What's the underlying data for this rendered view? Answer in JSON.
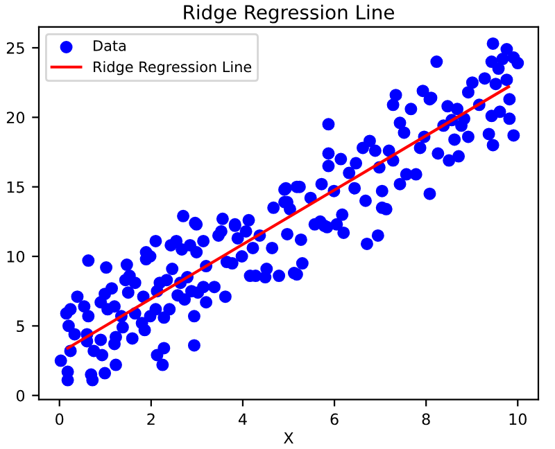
{
  "chart_data": {
    "type": "scatter",
    "title": "Ridge Regression Line",
    "xlabel": "X",
    "xlim": [
      -0.45,
      10.45
    ],
    "ylim": [
      -0.3,
      26.5
    ],
    "xticks": [
      0,
      2,
      4,
      6,
      8,
      10
    ],
    "yticks": [
      0,
      5,
      10,
      15,
      20,
      25
    ],
    "grid": false,
    "legend": "top left",
    "series": [
      {
        "name": "Data",
        "color": "#0000ff",
        "marker": "circle",
        "x": [
          0.18,
          0.18,
          0.03,
          0.24,
          0.2,
          0.15,
          0.24,
          0.39,
          0.33,
          0.63,
          0.54,
          0.63,
          0.6,
          0.6,
          0.69,
          0.72,
          0.75,
          0.9,
          0.93,
          0.99,
          0.9,
          0.99,
          1.02,
          1.05,
          1.14,
          1.2,
          1.23,
          1.2,
          1.23,
          1.35,
          1.38,
          1.44,
          1.47,
          1.5,
          1.53,
          1.59,
          1.65,
          1.65,
          1.8,
          1.83,
          1.86,
          1.89,
          1.89,
          1.98,
          1.98,
          2.1,
          2.1,
          2.13,
          2.13,
          2.19,
          2.25,
          2.28,
          2.28,
          2.34,
          2.4,
          2.43,
          2.46,
          2.55,
          2.58,
          2.64,
          2.67,
          2.73,
          2.79,
          2.85,
          2.88,
          2.94,
          2.94,
          2.99,
          2.99,
          3.02,
          3.14,
          3.14,
          3.2,
          3.2,
          3.38,
          3.47,
          3.53,
          3.62,
          3.65,
          3.77,
          3.83,
          3.89,
          3.98,
          4.07,
          4.16,
          4.22,
          4.28,
          4.37,
          4.49,
          4.52,
          4.64,
          4.79,
          4.97,
          5.12,
          2.7,
          2.96,
          3.56,
          3.83,
          4.13,
          4.67,
          4.91,
          4.91,
          5.03,
          5.18,
          4.94,
          5.24,
          4.97,
          5.48,
          5.72,
          5.69,
          5.84,
          5.87,
          5.87,
          5.87,
          5.99,
          6.14,
          6.17,
          6.32,
          6.44,
          6.47,
          6.62,
          6.68,
          6.77,
          6.89,
          6.98,
          7.04,
          7.13,
          7.04,
          7.19,
          7.28,
          7.34,
          7.28,
          7.43,
          7.43,
          7.52,
          7.57,
          7.67,
          7.78,
          7.87,
          7.93,
          7.96,
          8.08,
          8.08,
          8.11,
          8.26,
          8.23,
          8.38,
          8.47,
          8.5,
          8.56,
          8.68,
          8.71,
          8.77,
          8.62,
          8.83,
          8.92,
          8.92,
          9.01,
          9.16,
          9.28,
          9.37,
          9.43,
          9.46,
          9.43,
          9.46,
          9.52,
          9.58,
          9.61,
          9.67,
          9.76,
          9.76,
          9.82,
          9.82,
          9.91,
          9.91,
          10.0,
          5.27,
          5.3,
          5.18,
          5.57,
          5.78,
          6.05,
          6.2,
          6.71,
          6.95
        ],
        "values": [
          1.1,
          1.7,
          2.5,
          3.2,
          5.0,
          5.9,
          6.2,
          7.1,
          4.4,
          9.7,
          6.4,
          5.7,
          4.4,
          3.9,
          1.5,
          1.1,
          3.2,
          4.0,
          2.9,
          1.6,
          6.7,
          7.3,
          9.2,
          6.2,
          7.7,
          6.4,
          4.2,
          3.7,
          2.2,
          5.7,
          4.9,
          8.3,
          9.4,
          7.4,
          8.6,
          4.1,
          8.1,
          5.9,
          5.2,
          7.1,
          4.7,
          9.8,
          10.3,
          10.0,
          5.7,
          6.2,
          11.1,
          2.9,
          7.5,
          8.1,
          2.2,
          3.4,
          5.6,
          8.3,
          6.2,
          10.8,
          9.1,
          11.1,
          7.2,
          8.1,
          10.5,
          6.9,
          8.5,
          10.8,
          7.5,
          5.7,
          3.6,
          12.3,
          10.3,
          7.4,
          7.8,
          11.1,
          6.7,
          9.3,
          7.8,
          11.5,
          11.8,
          7.1,
          9.6,
          9.5,
          12.3,
          11.3,
          10.0,
          11.8,
          8.6,
          10.6,
          8.6,
          11.5,
          8.5,
          9.1,
          10.6,
          8.6,
          11.6,
          8.8,
          12.9,
          12.4,
          12.7,
          12.2,
          12.6,
          13.5,
          14.8,
          13.9,
          13.4,
          15.0,
          14.9,
          15.0,
          13.9,
          14.2,
          15.2,
          12.5,
          12.1,
          16.5,
          17.4,
          19.5,
          14.7,
          17.0,
          13.0,
          16.0,
          14.9,
          16.7,
          17.8,
          14.0,
          18.3,
          17.6,
          16.4,
          13.5,
          13.4,
          14.7,
          17.6,
          16.9,
          21.6,
          20.9,
          15.2,
          19.6,
          18.9,
          15.9,
          20.6,
          15.9,
          17.8,
          21.9,
          18.6,
          14.5,
          21.3,
          21.4,
          17.4,
          24.0,
          19.4,
          20.8,
          16.9,
          19.8,
          20.6,
          17.2,
          19.4,
          18.4,
          19.9,
          18.6,
          21.8,
          22.5,
          20.9,
          22.8,
          18.8,
          20.1,
          18.0,
          24.0,
          25.3,
          22.4,
          23.5,
          20.4,
          24.2,
          22.7,
          24.9,
          21.3,
          19.9,
          18.7,
          24.3,
          23.9,
          11.2,
          9.5,
          8.7,
          12.3,
          12.2,
          12.3,
          11.7,
          10.9,
          11.5
        ]
      },
      {
        "name": "Ridge Regression Line",
        "type": "line",
        "color": "#ff0000",
        "line_style": "solid",
        "marker": "none",
        "x": [
          0.18,
          9.8
        ],
        "values": [
          3.4,
          22.2
        ]
      }
    ]
  }
}
